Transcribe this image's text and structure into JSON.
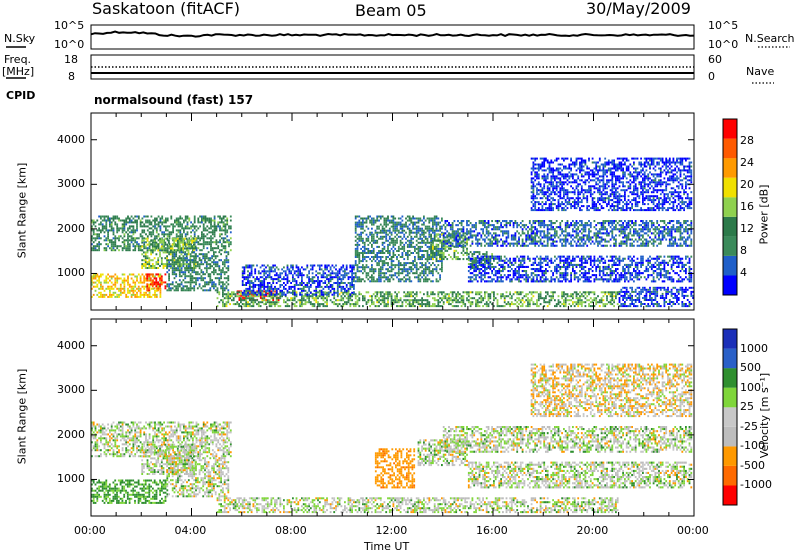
{
  "header": {
    "station": "Saskatoon (fitACF)",
    "beam": "Beam 05",
    "date": "30/May/2009"
  },
  "noise_panel": {
    "left_label": "N.Sky",
    "right_label": "N.Search",
    "left_ticks": [
      "10^5",
      "10^0"
    ],
    "right_ticks": [
      "10^5",
      "10^0"
    ]
  },
  "freq_panel": {
    "left_label_line1": "Freq.",
    "left_label_line2": "[MHz]",
    "right_label": "Nave",
    "left_ticks": [
      "18",
      "8"
    ],
    "right_ticks": [
      "60",
      "0"
    ]
  },
  "cpid": {
    "label": "CPID",
    "value": "normalsound (fast) 157"
  },
  "colors": {
    "power_scale": [
      "#0000ff",
      "#1f5fc9",
      "#3a8a5a",
      "#2c7a4a",
      "#8fd14f",
      "#f0e000",
      "#ff9a00",
      "#ff5a00",
      "#ff0000"
    ],
    "velocity_scale": [
      "#ff0000",
      "#ff6a00",
      "#ff9900",
      "#bdbdbd",
      "#c8c8c8",
      "#7fd63a",
      "#2f8f2f",
      "#2a60c8",
      "#1b2fb8"
    ]
  },
  "chart_data": [
    {
      "type": "heatmap",
      "panel": "power",
      "ylabel": "Slant Range [km]",
      "yticks": [
        "1000",
        "2000",
        "3000",
        "4000"
      ],
      "ylim": [
        180,
        4600
      ],
      "xlim": [
        0,
        24
      ],
      "colorbar": {
        "label": "Power [dB]",
        "ticks": [
          "4",
          "8",
          "12",
          "16",
          "20",
          "24",
          "28"
        ],
        "range": [
          0,
          30
        ]
      },
      "regions": [
        {
          "t0": 0.0,
          "t1": 5.6,
          "r0": 1500,
          "r1": 2300,
          "level": 10
        },
        {
          "t0": 2.0,
          "t1": 4.2,
          "r0": 1100,
          "r1": 1800,
          "level": 14
        },
        {
          "t0": 0.0,
          "t1": 2.8,
          "r0": 450,
          "r1": 1000,
          "level": 19
        },
        {
          "t0": 2.2,
          "t1": 3.0,
          "r0": 600,
          "r1": 1000,
          "level": 27
        },
        {
          "t0": 3.0,
          "t1": 5.5,
          "r0": 600,
          "r1": 1500,
          "level": 9
        },
        {
          "t0": 5.8,
          "t1": 7.5,
          "r0": 380,
          "r1": 620,
          "level": 29
        },
        {
          "t0": 5.0,
          "t1": 21.0,
          "r0": 200,
          "r1": 600,
          "level": 13
        },
        {
          "t0": 6.0,
          "t1": 10.5,
          "r0": 500,
          "r1": 1200,
          "level": 4
        },
        {
          "t0": 10.5,
          "t1": 14.0,
          "r0": 800,
          "r1": 2300,
          "level": 8
        },
        {
          "t0": 13.5,
          "t1": 15.0,
          "r0": 1300,
          "r1": 1900,
          "level": 13
        },
        {
          "t0": 15.0,
          "t1": 16.0,
          "r0": 1100,
          "r1": 1500,
          "level": 10
        },
        {
          "t0": 14.0,
          "t1": 24.0,
          "r0": 1600,
          "r1": 2200,
          "level": 6
        },
        {
          "t0": 15.0,
          "t1": 24.0,
          "r0": 800,
          "r1": 1400,
          "level": 4
        },
        {
          "t0": 17.5,
          "t1": 24.0,
          "r0": 2400,
          "r1": 3600,
          "level": 3
        },
        {
          "t0": 21.0,
          "t1": 24.0,
          "r0": 200,
          "r1": 700,
          "level": 4
        }
      ]
    },
    {
      "type": "heatmap",
      "panel": "velocity",
      "ylabel": "Slant Range [km]",
      "yticks": [
        "1000",
        "2000",
        "3000",
        "4000"
      ],
      "ylim": [
        180,
        4600
      ],
      "xlim": [
        0,
        24
      ],
      "xlabel": "Time UT",
      "xticks": [
        "00:00",
        "04:00",
        "08:00",
        "12:00",
        "16:00",
        "20:00",
        "00:00"
      ],
      "colorbar": {
        "label": "Velocity [m s⁻¹]",
        "ticks": [
          "1000",
          "500",
          "100",
          "25",
          "-25",
          "-100",
          "-500",
          "-1000"
        ],
        "range": [
          -1200,
          1200
        ]
      },
      "regions": [
        {
          "t0": 0.0,
          "t1": 5.6,
          "r0": 1500,
          "r1": 2300,
          "level": 0
        },
        {
          "t0": 2.0,
          "t1": 4.2,
          "r0": 1100,
          "r1": 1800,
          "level": 0
        },
        {
          "t0": 0.0,
          "t1": 3.0,
          "r0": 450,
          "r1": 1000,
          "level": 150
        },
        {
          "t0": 3.0,
          "t1": 5.5,
          "r0": 600,
          "r1": 1500,
          "level": 0
        },
        {
          "t0": 5.0,
          "t1": 21.0,
          "r0": 200,
          "r1": 600,
          "level": 0
        },
        {
          "t0": 11.3,
          "t1": 12.9,
          "r0": 800,
          "r1": 1700,
          "level": -400
        },
        {
          "t0": 13.0,
          "t1": 15.0,
          "r0": 1300,
          "r1": 1900,
          "level": 0
        },
        {
          "t0": 14.0,
          "t1": 24.0,
          "r0": 1600,
          "r1": 2200,
          "level": 0
        },
        {
          "t0": 15.0,
          "t1": 24.0,
          "r0": 800,
          "r1": 1400,
          "level": 0
        },
        {
          "t0": 17.5,
          "t1": 24.0,
          "r0": 2400,
          "r1": 3600,
          "level": -60
        }
      ]
    }
  ]
}
